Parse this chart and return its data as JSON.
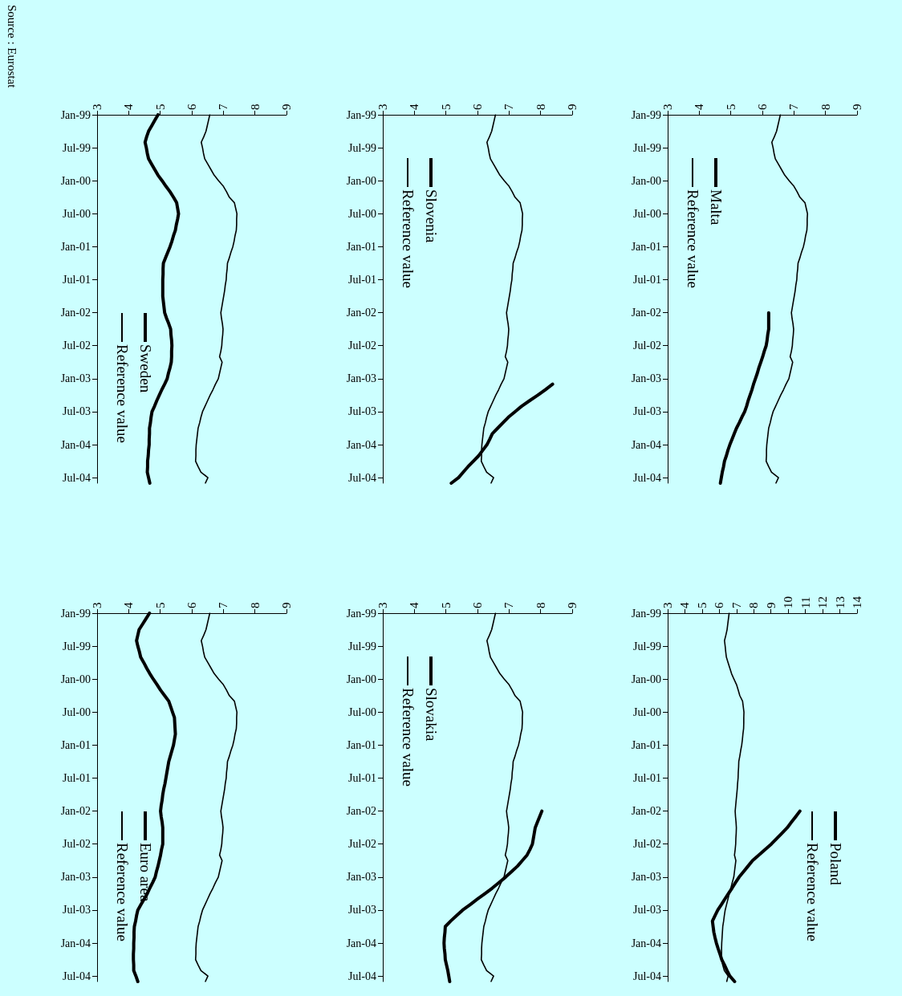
{
  "chart_data": [
    {
      "type": "line",
      "orientation": "horizontal",
      "legend": "bottom left",
      "marker": "none",
      "line_style": "solid",
      "xlim": [
        3,
        9
      ],
      "xticks": [
        3,
        4,
        5,
        6,
        7,
        8,
        9
      ],
      "categories": [
        "Jan-99",
        null,
        null,
        null,
        null,
        null,
        "Jul-99",
        null,
        null,
        null,
        null,
        null,
        "Jan-00",
        null,
        null,
        null,
        null,
        null,
        "Jul-00",
        null,
        null,
        null,
        null,
        null,
        "Jan-01",
        null,
        null,
        null,
        null,
        null,
        "Jul-01",
        null,
        null,
        null,
        null,
        null,
        "Jan-02",
        null,
        null,
        null,
        null,
        null,
        "Jul-02",
        null,
        null,
        null,
        null,
        null,
        "Jan-03",
        null,
        null,
        null,
        null,
        null,
        "Jul-03",
        null,
        null,
        null,
        null,
        null,
        "Jan-04",
        null,
        null,
        null,
        null,
        null,
        "Jul-04",
        null
      ],
      "annotations": [
        "Source : Eurostat"
      ],
      "series": [
        {
          "name": "Sweden",
          "color": "#000000",
          "values": [
            4.93,
            4.83,
            4.73,
            4.63,
            4.57,
            4.52,
            4.56,
            4.59,
            4.63,
            4.73,
            4.83,
            4.93,
            5.06,
            5.18,
            5.31,
            5.42,
            5.52,
            5.55,
            5.58,
            5.55,
            5.51,
            5.48,
            5.42,
            5.37,
            5.31,
            5.24,
            5.17,
            5.1,
            5.09,
            5.09,
            5.08,
            5.08,
            5.08,
            5.08,
            5.1,
            5.12,
            5.14,
            5.2,
            5.27,
            5.33,
            5.34,
            5.36,
            5.37,
            5.36,
            5.36,
            5.35,
            5.31,
            5.26,
            5.22,
            5.14,
            5.05,
            4.97,
            4.89,
            4.82,
            4.74,
            4.71,
            4.69,
            4.66,
            4.66,
            4.65,
            4.65,
            4.63,
            4.62,
            4.6,
            4.6,
            4.59,
            4.63,
            4.67
          ]
        },
        {
          "name": "Reference value",
          "color": "#000000",
          "values": [
            6.57,
            6.53,
            6.49,
            6.45,
            6.38,
            6.3,
            6.34,
            6.37,
            6.41,
            6.51,
            6.61,
            6.71,
            6.85,
            7.0,
            7.1,
            7.19,
            7.35,
            7.39,
            7.43,
            7.42,
            7.42,
            7.41,
            7.37,
            7.34,
            7.3,
            7.24,
            7.19,
            7.13,
            7.12,
            7.1,
            7.09,
            7.06,
            7.04,
            7.01,
            6.98,
            6.95,
            6.92,
            6.94,
            6.97,
            6.99,
            6.98,
            6.96,
            6.95,
            6.92,
            6.88,
            6.96,
            6.92,
            6.88,
            6.84,
            6.75,
            6.67,
            6.58,
            6.5,
            6.42,
            6.34,
            6.29,
            6.25,
            6.2,
            6.18,
            6.16,
            6.14,
            6.13,
            6.13,
            6.12,
            6.2,
            6.29,
            6.51,
            6.43
          ]
        }
      ]
    },
    {
      "type": "line",
      "orientation": "horizontal",
      "legend": "top left",
      "marker": "none",
      "line_style": "solid",
      "xlim": [
        3,
        9
      ],
      "xticks": [
        3,
        4,
        5,
        6,
        7,
        8,
        9
      ],
      "categories": [
        "Jan-99",
        null,
        null,
        null,
        null,
        null,
        "Jul-99",
        null,
        null,
        null,
        null,
        null,
        "Jan-00",
        null,
        null,
        null,
        null,
        null,
        "Jul-00",
        null,
        null,
        null,
        null,
        null,
        "Jan-01",
        null,
        null,
        null,
        null,
        null,
        "Jul-01",
        null,
        null,
        null,
        null,
        null,
        "Jan-02",
        null,
        null,
        null,
        null,
        null,
        "Jul-02",
        null,
        null,
        null,
        null,
        null,
        "Jan-03",
        null,
        null,
        null,
        null,
        null,
        "Jul-03",
        null,
        null,
        null,
        null,
        null,
        "Jan-04",
        null,
        null,
        null,
        null,
        null,
        "Jul-04",
        null
      ],
      "series": [
        {
          "name": "Slovenia",
          "color": "#000000",
          "values": [
            null,
            null,
            null,
            null,
            null,
            null,
            null,
            null,
            null,
            null,
            null,
            null,
            null,
            null,
            null,
            null,
            null,
            null,
            null,
            null,
            null,
            null,
            null,
            null,
            null,
            null,
            null,
            null,
            null,
            null,
            null,
            null,
            null,
            null,
            null,
            null,
            null,
            null,
            null,
            null,
            null,
            null,
            null,
            null,
            null,
            null,
            null,
            null,
            null,
            8.38,
            8.15,
            7.91,
            7.65,
            7.4,
            7.19,
            6.98,
            6.81,
            6.64,
            6.47,
            6.39,
            6.3,
            6.17,
            6.04,
            5.87,
            5.7,
            5.55,
            5.4,
            5.17
          ]
        },
        {
          "name": "Reference value",
          "color": "#000000",
          "values": [
            6.57,
            6.53,
            6.49,
            6.45,
            6.38,
            6.3,
            6.34,
            6.37,
            6.41,
            6.51,
            6.61,
            6.71,
            6.85,
            7.0,
            7.1,
            7.19,
            7.35,
            7.39,
            7.43,
            7.42,
            7.42,
            7.41,
            7.37,
            7.34,
            7.3,
            7.24,
            7.19,
            7.13,
            7.12,
            7.1,
            7.09,
            7.06,
            7.04,
            7.01,
            6.98,
            6.95,
            6.92,
            6.94,
            6.97,
            6.99,
            6.98,
            6.96,
            6.95,
            6.92,
            6.88,
            6.96,
            6.92,
            6.88,
            6.84,
            6.75,
            6.67,
            6.58,
            6.5,
            6.42,
            6.34,
            6.29,
            6.25,
            6.2,
            6.18,
            6.16,
            6.14,
            6.13,
            6.13,
            6.12,
            6.2,
            6.29,
            6.51,
            6.43
          ]
        }
      ]
    },
    {
      "type": "line",
      "orientation": "horizontal",
      "legend": "top left",
      "marker": "none",
      "line_style": "solid",
      "xlim": [
        3,
        9
      ],
      "xticks": [
        3,
        4,
        5,
        6,
        7,
        8,
        9
      ],
      "categories": [
        "Jan-99",
        null,
        null,
        null,
        null,
        null,
        "Jul-99",
        null,
        null,
        null,
        null,
        null,
        "Jan-00",
        null,
        null,
        null,
        null,
        null,
        "Jul-00",
        null,
        null,
        null,
        null,
        null,
        "Jan-01",
        null,
        null,
        null,
        null,
        null,
        "Jul-01",
        null,
        null,
        null,
        null,
        null,
        "Jan-02",
        null,
        null,
        null,
        null,
        null,
        "Jul-02",
        null,
        null,
        null,
        null,
        null,
        "Jan-03",
        null,
        null,
        null,
        null,
        null,
        "Jul-03",
        null,
        null,
        null,
        null,
        null,
        "Jan-04",
        null,
        null,
        null,
        null,
        null,
        "Jul-04",
        null
      ],
      "series": [
        {
          "name": "Malta",
          "color": "#000000",
          "values": [
            null,
            null,
            null,
            null,
            null,
            null,
            null,
            null,
            null,
            null,
            null,
            null,
            null,
            null,
            null,
            null,
            null,
            null,
            null,
            null,
            null,
            null,
            null,
            null,
            null,
            null,
            null,
            null,
            null,
            null,
            null,
            null,
            null,
            null,
            null,
            null,
            6.2,
            6.2,
            6.2,
            6.2,
            6.17,
            6.15,
            6.12,
            6.06,
            6.01,
            5.95,
            5.89,
            5.84,
            5.78,
            5.72,
            5.67,
            5.61,
            5.55,
            5.5,
            5.44,
            5.35,
            5.27,
            5.18,
            5.11,
            5.04,
            4.97,
            4.91,
            4.86,
            4.8,
            4.77,
            4.73,
            4.7,
            4.67
          ]
        },
        {
          "name": "Reference value",
          "color": "#000000",
          "values": [
            6.57,
            6.53,
            6.49,
            6.45,
            6.38,
            6.3,
            6.34,
            6.37,
            6.41,
            6.51,
            6.61,
            6.71,
            6.85,
            7.0,
            7.1,
            7.19,
            7.35,
            7.39,
            7.43,
            7.42,
            7.42,
            7.41,
            7.37,
            7.34,
            7.3,
            7.24,
            7.19,
            7.13,
            7.12,
            7.1,
            7.09,
            7.06,
            7.04,
            7.01,
            6.98,
            6.95,
            6.92,
            6.94,
            6.97,
            6.99,
            6.98,
            6.96,
            6.95,
            6.92,
            6.88,
            6.96,
            6.92,
            6.88,
            6.84,
            6.75,
            6.67,
            6.58,
            6.5,
            6.42,
            6.34,
            6.29,
            6.25,
            6.2,
            6.18,
            6.16,
            6.14,
            6.13,
            6.13,
            6.12,
            6.2,
            6.29,
            6.51,
            6.43
          ]
        }
      ]
    },
    {
      "type": "line",
      "orientation": "horizontal",
      "legend": "bottom left",
      "marker": "none",
      "line_style": "solid",
      "xlim": [
        3,
        9
      ],
      "xticks": [
        3,
        4,
        5,
        6,
        7,
        8,
        9
      ],
      "categories": [
        "Jan-99",
        null,
        null,
        null,
        null,
        null,
        "Jul-99",
        null,
        null,
        null,
        null,
        null,
        "Jan-00",
        null,
        null,
        null,
        null,
        null,
        "Jul-00",
        null,
        null,
        null,
        null,
        null,
        "Jan-01",
        null,
        null,
        null,
        null,
        null,
        "Jul-01",
        null,
        null,
        null,
        null,
        null,
        "Jan-02",
        null,
        null,
        null,
        null,
        null,
        "Jul-02",
        null,
        null,
        null,
        null,
        null,
        "Jan-03",
        null,
        null,
        null,
        null,
        null,
        "Jul-03",
        null,
        null,
        null,
        null,
        null,
        "Jan-04",
        null,
        null,
        null,
        null,
        null,
        "Jul-04",
        null
      ],
      "series": [
        {
          "name": "Euro area",
          "color": "#000000",
          "values": [
            4.66,
            4.55,
            4.44,
            4.33,
            4.29,
            4.25,
            4.29,
            4.34,
            4.38,
            4.48,
            4.57,
            4.67,
            4.78,
            4.9,
            5.01,
            5.14,
            5.27,
            5.33,
            5.39,
            5.45,
            5.46,
            5.47,
            5.48,
            5.45,
            5.42,
            5.37,
            5.32,
            5.27,
            5.24,
            5.21,
            5.18,
            5.15,
            5.11,
            5.08,
            5.06,
            5.03,
            5.01,
            5.03,
            5.06,
            5.08,
            5.08,
            5.08,
            5.08,
            5.04,
            5.01,
            4.97,
            4.93,
            4.88,
            4.84,
            4.76,
            4.67,
            4.59,
            4.49,
            4.39,
            4.29,
            4.25,
            4.22,
            4.18,
            4.17,
            4.17,
            4.16,
            4.16,
            4.15,
            4.15,
            4.16,
            4.16,
            4.23,
            4.29
          ]
        },
        {
          "name": "Reference value",
          "color": "#000000",
          "values": [
            6.57,
            6.53,
            6.49,
            6.45,
            6.38,
            6.3,
            6.34,
            6.37,
            6.41,
            6.51,
            6.61,
            6.71,
            6.85,
            7.0,
            7.1,
            7.19,
            7.35,
            7.39,
            7.43,
            7.42,
            7.42,
            7.41,
            7.37,
            7.34,
            7.3,
            7.24,
            7.19,
            7.13,
            7.12,
            7.1,
            7.09,
            7.06,
            7.04,
            7.01,
            6.98,
            6.95,
            6.92,
            6.94,
            6.97,
            6.99,
            6.98,
            6.96,
            6.95,
            6.92,
            6.88,
            6.96,
            6.92,
            6.88,
            6.84,
            6.75,
            6.67,
            6.58,
            6.5,
            6.42,
            6.34,
            6.29,
            6.25,
            6.2,
            6.18,
            6.16,
            6.14,
            6.13,
            6.13,
            6.12,
            6.2,
            6.29,
            6.51,
            6.43
          ]
        }
      ]
    },
    {
      "type": "line",
      "orientation": "horizontal",
      "legend": "top left",
      "marker": "none",
      "line_style": "solid",
      "xlim": [
        3,
        9
      ],
      "xticks": [
        3,
        4,
        5,
        6,
        7,
        8,
        9
      ],
      "categories": [
        "Jan-99",
        null,
        null,
        null,
        null,
        null,
        "Jul-99",
        null,
        null,
        null,
        null,
        null,
        "Jan-00",
        null,
        null,
        null,
        null,
        null,
        "Jul-00",
        null,
        null,
        null,
        null,
        null,
        "Jan-01",
        null,
        null,
        null,
        null,
        null,
        "Jul-01",
        null,
        null,
        null,
        null,
        null,
        "Jan-02",
        null,
        null,
        null,
        null,
        null,
        "Jul-02",
        null,
        null,
        null,
        null,
        null,
        "Jan-03",
        null,
        null,
        null,
        null,
        null,
        "Jul-03",
        null,
        null,
        null,
        null,
        null,
        "Jan-04",
        null,
        null,
        null,
        null,
        null,
        "Jul-04",
        null
      ],
      "series": [
        {
          "name": "Slovakia",
          "color": "#000000",
          "values": [
            null,
            null,
            null,
            null,
            null,
            null,
            null,
            null,
            null,
            null,
            null,
            null,
            null,
            null,
            null,
            null,
            null,
            null,
            null,
            null,
            null,
            null,
            null,
            null,
            null,
            null,
            null,
            null,
            null,
            null,
            null,
            null,
            null,
            null,
            null,
            null,
            8.04,
            7.97,
            7.9,
            7.83,
            7.8,
            7.77,
            7.74,
            7.66,
            7.57,
            7.42,
            7.27,
            7.08,
            6.89,
            6.68,
            6.47,
            6.24,
            6.0,
            5.77,
            5.53,
            5.34,
            5.15,
            4.98,
            4.97,
            4.95,
            4.94,
            4.95,
            4.97,
            4.98,
            5.02,
            5.06,
            5.09,
            5.12
          ]
        },
        {
          "name": "Reference value",
          "color": "#000000",
          "values": [
            6.57,
            6.53,
            6.49,
            6.45,
            6.38,
            6.3,
            6.34,
            6.37,
            6.41,
            6.51,
            6.61,
            6.71,
            6.85,
            7.0,
            7.1,
            7.19,
            7.35,
            7.39,
            7.43,
            7.42,
            7.42,
            7.41,
            7.37,
            7.34,
            7.3,
            7.24,
            7.19,
            7.13,
            7.12,
            7.1,
            7.09,
            7.06,
            7.04,
            7.01,
            6.98,
            6.95,
            6.92,
            6.94,
            6.97,
            6.99,
            6.98,
            6.96,
            6.95,
            6.92,
            6.88,
            6.96,
            6.92,
            6.88,
            6.84,
            6.75,
            6.67,
            6.58,
            6.5,
            6.42,
            6.34,
            6.29,
            6.25,
            6.2,
            6.18,
            6.16,
            6.14,
            6.13,
            6.13,
            6.12,
            6.2,
            6.29,
            6.51,
            6.43
          ]
        }
      ]
    },
    {
      "type": "line",
      "orientation": "horizontal",
      "legend": "bottom right",
      "marker": "none",
      "line_style": "solid",
      "xlim": [
        3,
        14
      ],
      "xticks": [
        3,
        4,
        5,
        6,
        7,
        8,
        9,
        10,
        11,
        12,
        13,
        14
      ],
      "categories": [
        "Jan-99",
        null,
        null,
        null,
        null,
        null,
        "Jul-99",
        null,
        null,
        null,
        null,
        null,
        "Jan-00",
        null,
        null,
        null,
        null,
        null,
        "Jul-00",
        null,
        null,
        null,
        null,
        null,
        "Jan-01",
        null,
        null,
        null,
        null,
        null,
        "Jul-01",
        null,
        null,
        null,
        null,
        null,
        "Jan-02",
        null,
        null,
        null,
        null,
        null,
        "Jul-02",
        null,
        null,
        null,
        null,
        null,
        "Jan-03",
        null,
        null,
        null,
        null,
        null,
        "Jul-03",
        null,
        null,
        null,
        null,
        null,
        "Jan-04",
        null,
        null,
        null,
        null,
        null,
        "Jul-04",
        null
      ],
      "series": [
        {
          "name": "Poland",
          "color": "#000000",
          "values": [
            null,
            null,
            null,
            null,
            null,
            null,
            null,
            null,
            null,
            null,
            null,
            null,
            null,
            null,
            null,
            null,
            null,
            null,
            null,
            null,
            null,
            null,
            null,
            null,
            null,
            null,
            null,
            null,
            null,
            null,
            null,
            null,
            null,
            null,
            null,
            null,
            10.68,
            10.44,
            10.19,
            9.95,
            9.64,
            9.33,
            9.02,
            8.66,
            8.29,
            7.93,
            7.67,
            7.41,
            7.15,
            6.94,
            6.74,
            6.53,
            6.32,
            6.12,
            5.91,
            5.75,
            5.6,
            5.64,
            5.68,
            5.75,
            5.83,
            5.93,
            6.04,
            6.14,
            6.3,
            6.45,
            6.61,
            6.89
          ]
        },
        {
          "name": "Reference value",
          "color": "#000000",
          "values": [
            6.57,
            6.53,
            6.49,
            6.45,
            6.38,
            6.3,
            6.34,
            6.37,
            6.41,
            6.51,
            6.61,
            6.71,
            6.85,
            7.0,
            7.1,
            7.19,
            7.35,
            7.39,
            7.43,
            7.42,
            7.42,
            7.41,
            7.37,
            7.34,
            7.3,
            7.24,
            7.19,
            7.13,
            7.12,
            7.1,
            7.09,
            7.06,
            7.04,
            7.01,
            6.98,
            6.95,
            6.92,
            6.94,
            6.97,
            6.99,
            6.98,
            6.96,
            6.95,
            6.92,
            6.88,
            6.96,
            6.92,
            6.88,
            6.84,
            6.75,
            6.67,
            6.58,
            6.5,
            6.42,
            6.34,
            6.29,
            6.25,
            6.2,
            6.18,
            6.16,
            6.14,
            6.13,
            6.13,
            6.12,
            6.2,
            6.29,
            6.51,
            6.43
          ]
        }
      ]
    }
  ]
}
